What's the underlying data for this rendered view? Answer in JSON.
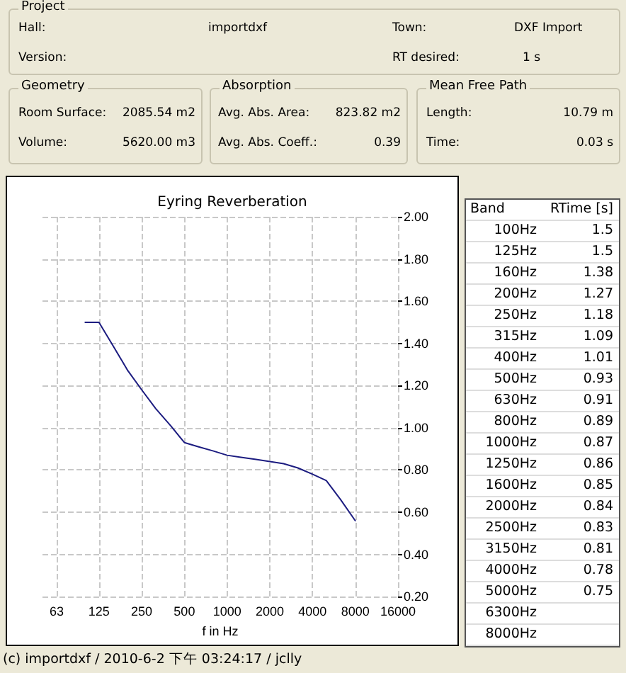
{
  "chart_data": {
    "type": "line",
    "title": "Eyring Reverberation",
    "xlabel": "f in Hz",
    "log": "x",
    "grid": true,
    "marker": "none",
    "line_style": "solid",
    "x": [
      100,
      125,
      160,
      200,
      250,
      315,
      400,
      500,
      630,
      800,
      1000,
      1250,
      1600,
      2000,
      2500,
      3150,
      4000,
      5000,
      6300,
      8000
    ],
    "series": [
      {
        "color": "#1c1c80",
        "values": [
          1.5,
          1.5,
          1.38,
          1.27,
          1.18,
          1.09,
          1.01,
          0.93,
          0.91,
          0.89,
          0.87,
          0.86,
          0.85,
          0.84,
          0.83,
          0.81,
          0.78,
          0.75,
          0.66,
          0.56
        ]
      }
    ],
    "xlim": [
      50,
      16000
    ],
    "xticks": [
      63,
      125,
      250,
      500,
      1000,
      2000,
      4000,
      8000,
      16000
    ],
    "ylim": [
      0.2,
      2.0
    ],
    "yticks": [
      {
        "value": 0.2,
        "label": "0.20"
      },
      {
        "value": 0.4,
        "label": "0.40"
      },
      {
        "value": 0.6,
        "label": "0.60"
      },
      {
        "value": 0.8,
        "label": "0.80"
      },
      {
        "value": 1.0,
        "label": "1.00"
      },
      {
        "value": 1.2,
        "label": "1.20"
      },
      {
        "value": 1.4,
        "label": "1.40"
      },
      {
        "value": 1.6,
        "label": "1.60"
      },
      {
        "value": 1.8,
        "label": "1.80"
      },
      {
        "value": 2.0,
        "label": "2.00"
      }
    ],
    "annotations": [
      "Project",
      "Hall:",
      "importdxf",
      "Town:",
      "DXF Import",
      "Version:",
      "RT desired:",
      "1 s",
      "Geometry",
      "Room Surface:",
      "2085.54 m2",
      "Volume:",
      "5620.00 m3",
      "Absorption",
      "Avg. Abs. Area:",
      "823.82 m2",
      "Avg. Abs. Coeff.:",
      "0.39",
      "Mean Free Path",
      "Length:",
      "10.79 m",
      "Time:",
      "0.03 s",
      "Band",
      "RTime [s]",
      "(c) importdxf / 2010-6-2 下午 03:24:17 / jclly",
      "100Hz",
      "125Hz",
      "160Hz",
      "200Hz",
      "250Hz",
      "315Hz",
      "400Hz",
      "500Hz",
      "630Hz",
      "800Hz",
      "1000Hz",
      "1250Hz",
      "1600Hz",
      "2000Hz",
      "2500Hz",
      "3150Hz",
      "4000Hz",
      "5000Hz",
      "6300Hz",
      "8000Hz",
      "1.5",
      "1.5",
      "1.38",
      "1.27",
      "1.18",
      "1.09",
      "1.01",
      "0.93",
      "0.91",
      "0.89",
      "0.87",
      "0.86",
      "0.85",
      "0.84",
      "0.83",
      "0.81",
      "0.78",
      "0.75"
    ]
  }
}
